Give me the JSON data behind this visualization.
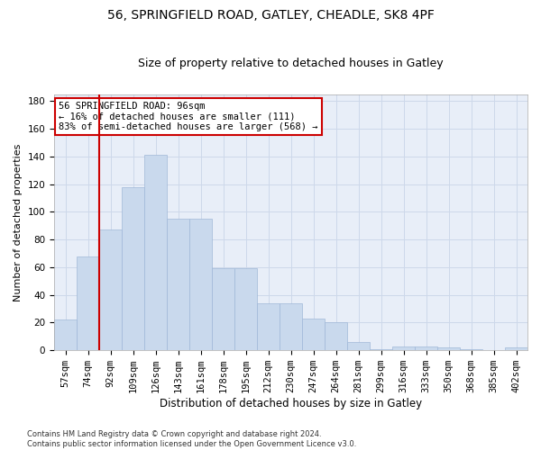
{
  "title1": "56, SPRINGFIELD ROAD, GATLEY, CHEADLE, SK8 4PF",
  "title2": "Size of property relative to detached houses in Gatley",
  "xlabel": "Distribution of detached houses by size in Gatley",
  "ylabel": "Number of detached properties",
  "bar_labels": [
    "57sqm",
    "74sqm",
    "92sqm",
    "109sqm",
    "126sqm",
    "143sqm",
    "161sqm",
    "178sqm",
    "195sqm",
    "212sqm",
    "230sqm",
    "247sqm",
    "264sqm",
    "281sqm",
    "299sqm",
    "316sqm",
    "333sqm",
    "350sqm",
    "368sqm",
    "385sqm",
    "402sqm"
  ],
  "bar_values": [
    22,
    68,
    87,
    118,
    141,
    95,
    95,
    59,
    59,
    34,
    34,
    23,
    20,
    6,
    1,
    3,
    3,
    2,
    1,
    0,
    2
  ],
  "bar_color": "#c9d9ed",
  "bar_edgecolor": "#a0b8d8",
  "grid_color": "#cdd8ea",
  "background_color": "#e8eef8",
  "vline_x": 2.0,
  "vline_color": "#cc0000",
  "annotation_text": "56 SPRINGFIELD ROAD: 96sqm\n← 16% of detached houses are smaller (111)\n83% of semi-detached houses are larger (568) →",
  "annotation_box_facecolor": "#ffffff",
  "annotation_box_edgecolor": "#cc0000",
  "ylim": [
    0,
    185
  ],
  "yticks": [
    0,
    20,
    40,
    60,
    80,
    100,
    120,
    140,
    160,
    180
  ],
  "footnote": "Contains HM Land Registry data © Crown copyright and database right 2024.\nContains public sector information licensed under the Open Government Licence v3.0.",
  "title1_fontsize": 10,
  "title2_fontsize": 9,
  "xlabel_fontsize": 8.5,
  "ylabel_fontsize": 8,
  "tick_fontsize": 7.5,
  "annotation_fontsize": 7.5,
  "footnote_fontsize": 6
}
